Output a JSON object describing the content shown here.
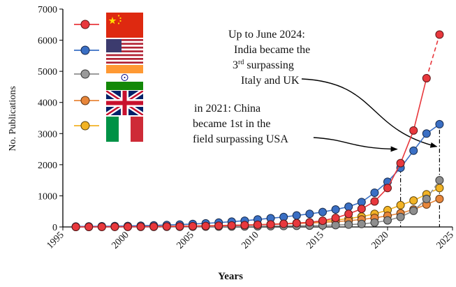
{
  "chart_data": {
    "type": "line",
    "title": "",
    "xlabel": "Years",
    "ylabel": "No. Publications",
    "xlim": [
      1995,
      2025
    ],
    "ylim": [
      0,
      7000
    ],
    "x_ticks": [
      1995,
      2000,
      2005,
      2010,
      2015,
      2020,
      2025
    ],
    "y_ticks": [
      0,
      1000,
      2000,
      3000,
      4000,
      5000,
      6000,
      7000
    ],
    "grid": false,
    "legend_position": "top-left",
    "legend_style": "country flags",
    "x": [
      1996,
      1997,
      1998,
      1999,
      2000,
      2001,
      2002,
      2003,
      2004,
      2005,
      2006,
      2007,
      2008,
      2009,
      2010,
      2011,
      2012,
      2013,
      2014,
      2015,
      2016,
      2017,
      2018,
      2019,
      2020,
      2021,
      2022,
      2023,
      2024
    ],
    "series": [
      {
        "key": "china",
        "legend_flag": "China",
        "color": "#e8383d",
        "values": [
          2,
          3,
          4,
          5,
          6,
          8,
          10,
          14,
          18,
          24,
          30,
          38,
          48,
          58,
          70,
          82,
          100,
          120,
          150,
          200,
          290,
          420,
          580,
          820,
          1250,
          2050,
          3100,
          4780,
          6180
        ],
        "dashed_from_x": 2023
      },
      {
        "key": "usa",
        "legend_flag": "USA",
        "color": "#3a6fc4",
        "values": [
          15,
          18,
          22,
          28,
          32,
          40,
          50,
          62,
          75,
          95,
          115,
          140,
          170,
          200,
          240,
          280,
          320,
          370,
          420,
          480,
          560,
          650,
          800,
          1100,
          1450,
          1900,
          2450,
          3000,
          3300
        ]
      },
      {
        "key": "india",
        "legend_flag": "India",
        "color": "#8e8e8e",
        "values": [
          1,
          1,
          2,
          2,
          3,
          3,
          4,
          5,
          6,
          8,
          10,
          12,
          15,
          18,
          22,
          26,
          30,
          36,
          42,
          50,
          60,
          75,
          95,
          140,
          210,
          320,
          520,
          900,
          1500
        ],
        "dashed_from_x": 2023
      },
      {
        "key": "uk",
        "legend_flag": "UK",
        "color": "#e8863a",
        "values": [
          5,
          6,
          8,
          10,
          12,
          15,
          18,
          22,
          26,
          32,
          38,
          46,
          54,
          62,
          72,
          82,
          95,
          110,
          125,
          145,
          170,
          200,
          240,
          290,
          360,
          440,
          560,
          720,
          900
        ]
      },
      {
        "key": "italy",
        "legend_flag": "Italy",
        "color": "#f2b324",
        "values": [
          4,
          5,
          6,
          8,
          10,
          12,
          15,
          18,
          22,
          28,
          34,
          42,
          50,
          60,
          72,
          88,
          105,
          125,
          150,
          180,
          220,
          270,
          330,
          420,
          540,
          700,
          850,
          1050,
          1250
        ],
        "dashed_from_x": 2023
      }
    ],
    "annotations": [
      {
        "key": "a2024",
        "lines": [
          "Up to June 2024:",
          "India became the",
          "3rd surpassing",
          "Italy and UK"
        ],
        "arrow_to": {
          "x": 2024,
          "y": 3300
        },
        "vline_at_x": 2024
      },
      {
        "key": "a2021",
        "lines": [
          "in 2021: China",
          "became 1st in the",
          "field surpassing USA"
        ],
        "arrow_to": {
          "x": 2021,
          "y": 2050
        },
        "vline_at_x": 2021
      }
    ]
  }
}
